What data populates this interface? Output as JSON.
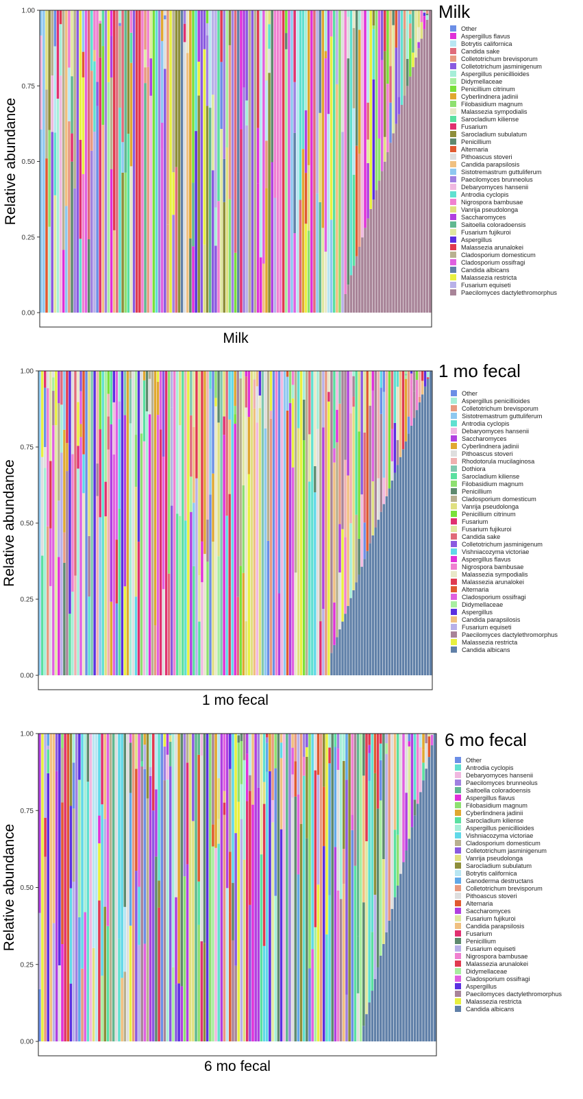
{
  "chart_data": [
    {
      "type": "bar",
      "stacked": true,
      "title": "Milk",
      "xlabel": "Milk",
      "ylabel": "Relative abundance",
      "ylim": [
        0,
        1
      ],
      "yticks": [
        "0.00",
        "0.25",
        "0.50",
        "0.75",
        "1.00"
      ],
      "n_samples": 139,
      "legend_position": "right",
      "legend": [
        {
          "name": "Other",
          "color": "#6b8ee6"
        },
        {
          "name": "Aspergillus flavus",
          "color": "#e030d8"
        },
        {
          "name": "Botrytis californica",
          "color": "#b8e6f2"
        },
        {
          "name": "Candida sake",
          "color": "#e06b7a"
        },
        {
          "name": "Colletotrichum brevisporum",
          "color": "#e89a80"
        },
        {
          "name": "Colletotrichum jasminigenum",
          "color": "#8a5ae0"
        },
        {
          "name": "Aspergillus penicillioides",
          "color": "#a6eed8"
        },
        {
          "name": "Didymellaceae",
          "color": "#a8eea0"
        },
        {
          "name": "Penicillium citrinum",
          "color": "#7ae03a"
        },
        {
          "name": "Cyberlindnera jadinii",
          "color": "#e0a830"
        },
        {
          "name": "Filobasidium magnum",
          "color": "#8ee070"
        },
        {
          "name": "Malassezia sympodialis",
          "color": "#e8e8c8"
        },
        {
          "name": "Sarocladium kiliense",
          "color": "#5ae0a0"
        },
        {
          "name": "Fusarium",
          "color": "#e03070"
        },
        {
          "name": "Sarocladium subulatum",
          "color": "#8e8e3a"
        },
        {
          "name": "Penicillium",
          "color": "#5e8a6e"
        },
        {
          "name": "Alternaria",
          "color": "#e05a30"
        },
        {
          "name": "Pithoascus stoveri",
          "color": "#dedede"
        },
        {
          "name": "Candida parapsilosis",
          "color": "#f0c080"
        },
        {
          "name": "Sistotremastrum guttuliferum",
          "color": "#8ec8f0"
        },
        {
          "name": "Paecilomyces brunneolus",
          "color": "#a080e0"
        },
        {
          "name": "Debaryomyces hansenii",
          "color": "#f0b8e0"
        },
        {
          "name": "Antrodia cyclopis",
          "color": "#60e0d0"
        },
        {
          "name": "Nigrospora bambusae",
          "color": "#f080d0"
        },
        {
          "name": "Vanrija pseudolonga",
          "color": "#e0e080"
        },
        {
          "name": "Saccharomyces",
          "color": "#b040e0"
        },
        {
          "name": "Saitoella coloradoensis",
          "color": "#60b890"
        },
        {
          "name": "Fusarium fujikuroi",
          "color": "#e0e8a0"
        },
        {
          "name": "Aspergillus",
          "color": "#5a30e0"
        },
        {
          "name": "Malassezia arunalokei",
          "color": "#e03a50"
        },
        {
          "name": "Cladosporium domesticum",
          "color": "#b8b090"
        },
        {
          "name": "Cladosporium ossifragi",
          "color": "#e060e0"
        },
        {
          "name": "Candida albicans",
          "color": "#6080a8"
        },
        {
          "name": "Malassezia restricta",
          "color": "#e8f040"
        },
        {
          "name": "Fusarium equiseti",
          "color": "#b8b0e8"
        },
        {
          "name": "Paecilomyces dactylethromorphus",
          "color": "#a88498"
        }
      ],
      "ordered_taxon": "Paecilomyces dactylethromorphus",
      "ordered_start": 0.78,
      "ordered_from_top": 0.27,
      "seed": 11
    },
    {
      "type": "bar",
      "stacked": true,
      "title": "1 mo fecal",
      "xlabel": "1 mo fecal",
      "ylabel": "Relative abundance",
      "ylim": [
        0,
        1
      ],
      "yticks": [
        "0.00",
        "0.25",
        "0.50",
        "0.75",
        "1.00"
      ],
      "n_samples": 143,
      "legend_position": "right",
      "legend": [
        {
          "name": "Other",
          "color": "#6b8ee6"
        },
        {
          "name": "Aspergillus penicillioides",
          "color": "#a6eed8"
        },
        {
          "name": "Colletotrichum brevisporum",
          "color": "#e89a80"
        },
        {
          "name": "Sistotremastrum guttuliferum",
          "color": "#8ec8f0"
        },
        {
          "name": "Antrodia cyclopis",
          "color": "#60e0d0"
        },
        {
          "name": "Debaryomyces hansenii",
          "color": "#f0b8e0"
        },
        {
          "name": "Saccharomyces",
          "color": "#b040e0"
        },
        {
          "name": "Cyberlindnera jadinii",
          "color": "#e0a830"
        },
        {
          "name": "Pithoascus stoveri",
          "color": "#dedede"
        },
        {
          "name": "Rhodotorula mucilaginosa",
          "color": "#f0b0b0"
        },
        {
          "name": "Dothiora",
          "color": "#80c8b0"
        },
        {
          "name": "Sarocladium kiliense",
          "color": "#5ae0a0"
        },
        {
          "name": "Filobasidium magnum",
          "color": "#8ee070"
        },
        {
          "name": "Penicillium",
          "color": "#5e8a6e"
        },
        {
          "name": "Cladosporium domesticum",
          "color": "#b8b090"
        },
        {
          "name": "Vanrija pseudolonga",
          "color": "#e0e080"
        },
        {
          "name": "Penicillium citrinum",
          "color": "#7ae03a"
        },
        {
          "name": "Fusarium",
          "color": "#e03070"
        },
        {
          "name": "Fusarium fujikuroi",
          "color": "#e0e8a0"
        },
        {
          "name": "Candida sake",
          "color": "#e06b7a"
        },
        {
          "name": "Colletotrichum jasminigenum",
          "color": "#8a5ae0"
        },
        {
          "name": "Vishniacozyma victoriae",
          "color": "#60d8e8"
        },
        {
          "name": "Aspergillus flavus",
          "color": "#e030d8"
        },
        {
          "name": "Nigrospora bambusae",
          "color": "#f080d0"
        },
        {
          "name": "Malassezia sympodialis",
          "color": "#e8e8c8"
        },
        {
          "name": "Malassezia arunalokei",
          "color": "#e03a50"
        },
        {
          "name": "Alternaria",
          "color": "#e05a30"
        },
        {
          "name": "Cladosporium ossifragi",
          "color": "#e060e0"
        },
        {
          "name": "Didymellaceae",
          "color": "#a8eea0"
        },
        {
          "name": "Aspergillus",
          "color": "#5a30e0"
        },
        {
          "name": "Candida parapsilosis",
          "color": "#f0c080"
        },
        {
          "name": "Fusarium equiseti",
          "color": "#b8b0e8"
        },
        {
          "name": "Paecilomyces dactylethromorphus",
          "color": "#a88498"
        },
        {
          "name": "Malassezia restricta",
          "color": "#e8f040"
        },
        {
          "name": "Candida albicans",
          "color": "#6080a8"
        }
      ],
      "ordered_taxon": "Candida albicans",
      "ordered_start": 0.74,
      "ordered_from_top": 0.0,
      "seed": 23
    },
    {
      "type": "bar",
      "stacked": true,
      "title": "6 mo fecal",
      "xlabel": "6 mo fecal",
      "ylabel": "Relative abundance",
      "ylim": [
        0,
        1
      ],
      "yticks": [
        "0.00",
        "0.25",
        "0.50",
        "0.75",
        "1.00"
      ],
      "n_samples": 140,
      "legend_position": "right",
      "legend": [
        {
          "name": "Other",
          "color": "#6b8ee6"
        },
        {
          "name": "Antrodia cyclopis",
          "color": "#60e0d0"
        },
        {
          "name": "Debaryomyces hansenii",
          "color": "#f0b8e0"
        },
        {
          "name": "Paecilomyces brunneolus",
          "color": "#a080e0"
        },
        {
          "name": "Saitoella coloradoensis",
          "color": "#60b890"
        },
        {
          "name": "Aspergillus flavus",
          "color": "#e030d8"
        },
        {
          "name": "Filobasidium magnum",
          "color": "#8ee070"
        },
        {
          "name": "Cyberlindnera jadinii",
          "color": "#e0a830"
        },
        {
          "name": "Sarocladium kiliense",
          "color": "#5ae0a0"
        },
        {
          "name": "Aspergillus penicillioides",
          "color": "#a6eed8"
        },
        {
          "name": "Vishniacozyma victoriae",
          "color": "#60d8e8"
        },
        {
          "name": "Cladosporium domesticum",
          "color": "#b8b090"
        },
        {
          "name": "Colletotrichum jasminigenum",
          "color": "#8a5ae0"
        },
        {
          "name": "Vanrija pseudolonga",
          "color": "#e0e080"
        },
        {
          "name": "Sarocladium subulatum",
          "color": "#8e8e3a"
        },
        {
          "name": "Botrytis californica",
          "color": "#b8e6f2"
        },
        {
          "name": "Ganoderma destructans",
          "color": "#60a8e8"
        },
        {
          "name": "Colletotrichum brevisporum",
          "color": "#e89a80"
        },
        {
          "name": "Pithoascus stoveri",
          "color": "#dedede"
        },
        {
          "name": "Alternaria",
          "color": "#e05a30"
        },
        {
          "name": "Saccharomyces",
          "color": "#b040e0"
        },
        {
          "name": "Fusarium fujikuroi",
          "color": "#e0e8a0"
        },
        {
          "name": "Candida parapsilosis",
          "color": "#f0c080"
        },
        {
          "name": "Fusarium",
          "color": "#e03070"
        },
        {
          "name": "Penicillium",
          "color": "#5e8a6e"
        },
        {
          "name": "Fusarium equiseti",
          "color": "#b8b0e8"
        },
        {
          "name": "Nigrospora bambusae",
          "color": "#f080d0"
        },
        {
          "name": "Malassezia arunalokei",
          "color": "#e03a50"
        },
        {
          "name": "Didymellaceae",
          "color": "#a8eea0"
        },
        {
          "name": "Cladosporium ossifragi",
          "color": "#e060e0"
        },
        {
          "name": "Aspergillus",
          "color": "#5a30e0"
        },
        {
          "name": "Paecilomyces dactylethromorphus",
          "color": "#a88498"
        },
        {
          "name": "Malassezia restricta",
          "color": "#e8f040"
        },
        {
          "name": "Candida albicans",
          "color": "#6080a8"
        }
      ],
      "ordered_taxon": "Candida albicans",
      "ordered_start": 0.82,
      "ordered_from_top": 0.0,
      "seed": 37
    }
  ]
}
